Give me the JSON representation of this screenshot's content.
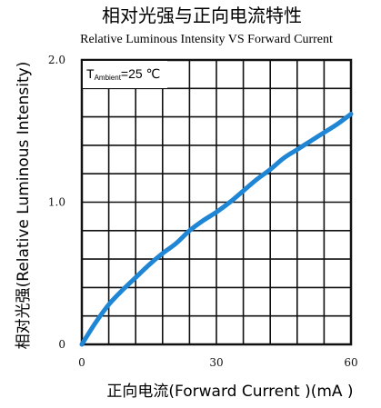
{
  "chart_data": {
    "type": "line",
    "title": "相对光强与正向电流特性",
    "subtitle": "Relative Luminous Intensity VS Forward Current",
    "xlabel": "正向电流(Forward Current )(mA )",
    "ylabel": "相对光强(Relative Luminous Intensity)",
    "xlim": [
      0,
      60
    ],
    "ylim": [
      0,
      2.0
    ],
    "x_ticks": [
      0,
      30,
      60
    ],
    "x_tick_labels": [
      "0",
      "30",
      "60"
    ],
    "y_ticks": [
      0,
      1.0,
      2.0
    ],
    "y_tick_labels": [
      "0",
      "1.0",
      "2.0"
    ],
    "grid": true,
    "grid_x_step": 6,
    "grid_y_step": 0.2,
    "annotation": {
      "prefix": "T",
      "sub": "Ambient",
      "suffix": "=25 ℃"
    },
    "series": [
      {
        "color": "#1f86d6",
        "x": [
          0,
          3,
          6,
          9,
          12,
          15,
          18,
          21,
          24,
          27,
          30,
          33,
          36,
          39,
          42,
          45,
          48,
          51,
          54,
          57,
          60
        ],
        "y": [
          0,
          0.15,
          0.28,
          0.38,
          0.47,
          0.56,
          0.64,
          0.71,
          0.8,
          0.87,
          0.93,
          1.0,
          1.08,
          1.16,
          1.23,
          1.31,
          1.37,
          1.43,
          1.49,
          1.55,
          1.62
        ]
      }
    ]
  }
}
